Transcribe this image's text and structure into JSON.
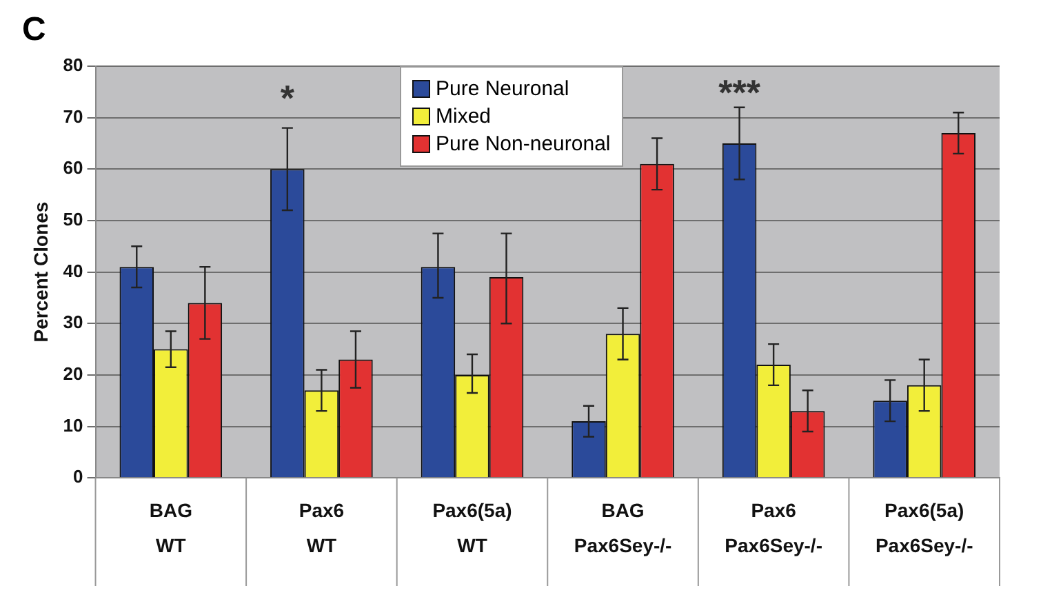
{
  "chart_data": {
    "type": "bar",
    "title": "C",
    "ylabel": "Percent Clones",
    "categories": [
      "BAG\nWT",
      "Pax6\nWT",
      "Pax6(5a)\nWT",
      "BAG\nPax6Sey-/-",
      "Pax6\nPax6Sey-/-",
      "Pax6(5a)\nPax6Sey-/-"
    ],
    "series": [
      {
        "name": "Pure Neuronal",
        "color": "#2b4a9a",
        "values": [
          41,
          60,
          41,
          11,
          65,
          15
        ],
        "errors": [
          [
            37,
            45
          ],
          [
            52,
            68
          ],
          [
            35,
            47.5
          ],
          [
            8,
            14
          ],
          [
            58,
            72
          ],
          [
            11,
            19
          ]
        ]
      },
      {
        "name": "Mixed",
        "color": "#f2ee3a",
        "values": [
          25,
          17,
          20,
          28,
          22,
          18
        ],
        "errors": [
          [
            21.5,
            28.5
          ],
          [
            13,
            21
          ],
          [
            16.5,
            24
          ],
          [
            23,
            33
          ],
          [
            18,
            26
          ],
          [
            13,
            23
          ]
        ]
      },
      {
        "name": "Pure Non-neuronal",
        "color": "#e23232",
        "values": [
          34,
          23,
          39,
          61,
          13,
          67
        ],
        "errors": [
          [
            27,
            41
          ],
          [
            17.5,
            28.5
          ],
          [
            30,
            47.5
          ],
          [
            56,
            66
          ],
          [
            9,
            17
          ],
          [
            63,
            71
          ]
        ]
      }
    ],
    "ylim": [
      0,
      80
    ],
    "yticks": [
      0,
      10,
      20,
      30,
      40,
      50,
      60,
      70,
      80
    ],
    "grid": "y",
    "legend": "top",
    "annotations": [
      "*",
      "***"
    ]
  }
}
